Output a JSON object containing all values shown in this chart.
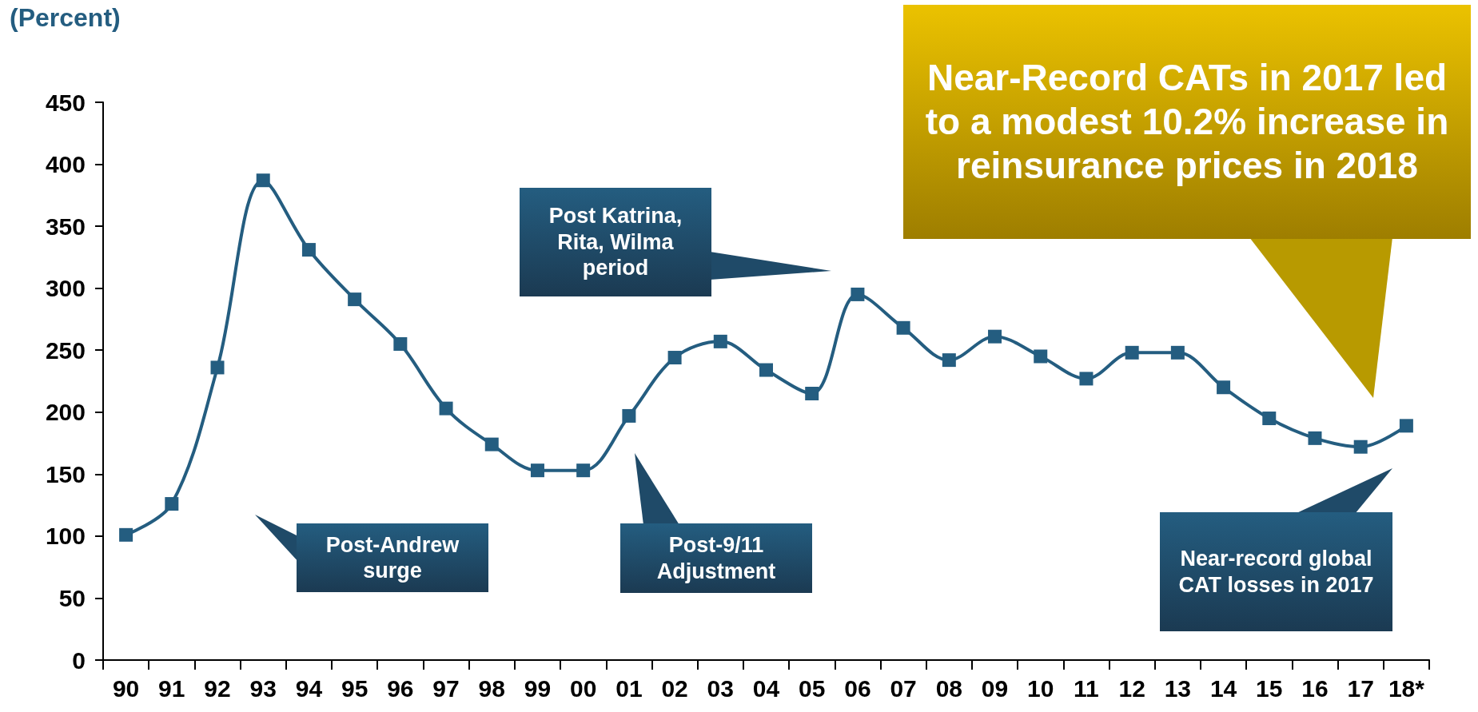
{
  "chart_data": {
    "type": "line",
    "ylabel": "(Percent)",
    "categories": [
      "90",
      "91",
      "92",
      "93",
      "94",
      "95",
      "96",
      "97",
      "98",
      "99",
      "00",
      "01",
      "02",
      "03",
      "04",
      "05",
      "06",
      "07",
      "08",
      "09",
      "10",
      "11",
      "12",
      "13",
      "14",
      "15",
      "16",
      "17",
      "18*"
    ],
    "series": [
      {
        "color": "#245d80",
        "values": [
          101,
          126,
          236,
          387,
          331,
          291,
          255,
          203,
          174,
          153,
          153,
          197,
          244,
          257,
          234,
          215,
          295,
          268,
          242,
          261,
          245,
          227,
          248,
          248,
          220,
          195,
          179,
          172,
          189
        ]
      }
    ],
    "ylim": [
      0,
      450
    ],
    "yticks": [
      0,
      50,
      100,
      150,
      200,
      250,
      300,
      350,
      400,
      450
    ],
    "grid": false,
    "legend": false,
    "marker": "square",
    "line_style": "solid",
    "annotations": [
      "Post-Andrew surge",
      "Post Katrina, Rita, Wilma period",
      "Post-9/11 Adjustment",
      "Near-record global CAT losses in 2017",
      "Near-Record CATs in 2017 led to a modest 10.2% increase in reinsurance prices in 2018"
    ]
  }
}
